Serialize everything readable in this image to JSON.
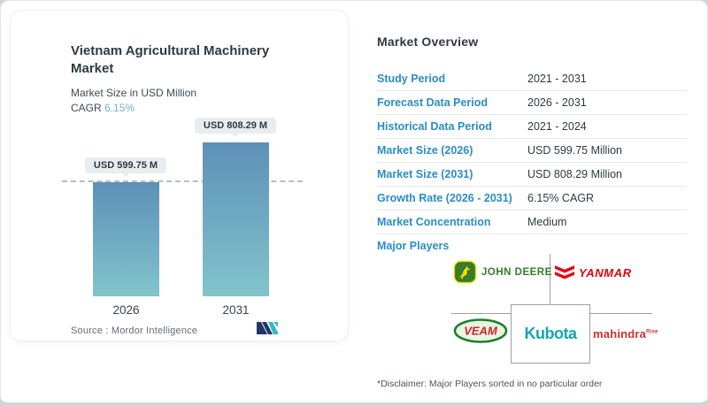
{
  "chart_card": {
    "title": "Vietnam Agricultural Machinery Market",
    "subtitle": "Market Size in USD Million",
    "cagr_label": "CAGR",
    "cagr_value": "6.15%",
    "source_label": "Source :",
    "source_value": "Mordor Intelligence"
  },
  "chart_data": {
    "type": "bar",
    "categories": [
      "2026",
      "2031"
    ],
    "values": [
      599.75,
      808.29
    ],
    "bar_labels": [
      "USD 599.75 M",
      "USD 808.29 M"
    ],
    "title": "Vietnam Agricultural Machinery Market",
    "ylabel": "Market Size in USD Million",
    "ylim": [
      0,
      808.29
    ],
    "grid": false,
    "reference_line_at": 599.75,
    "bar_gradient_top": "#5d90b8",
    "bar_gradient_bottom": "#82c4cb"
  },
  "overview": {
    "heading": "Market Overview",
    "rows": [
      {
        "label": "Study Period",
        "value": "2021 - 2031"
      },
      {
        "label": "Forecast Data Period",
        "value": "2026 - 2031"
      },
      {
        "label": "Historical Data Period",
        "value": "2021 - 2024"
      },
      {
        "label": "Market Size (2026)",
        "value": "USD 599.75 Million"
      },
      {
        "label": "Market Size (2031)",
        "value": "USD 808.29 Million"
      },
      {
        "label": "Growth Rate (2026 - 2031)",
        "value": "6.15% CAGR"
      },
      {
        "label": "Market Concentration",
        "value": "Medium"
      }
    ],
    "major_players_label": "Major Players",
    "players_logos": {
      "john_deere": "JOHN DEERE",
      "yanmar": "YANMAR",
      "kubota": "Kubota",
      "veam": "VEAM",
      "mahindra": "mahindra",
      "mahindra_sup": "Rise"
    },
    "disclaimer": "*Disclaimer: Major Players sorted in no particular order"
  },
  "colors": {
    "label_blue": "#2b8dc5",
    "cagr_blue": "#76aecb",
    "john_deere_green": "#367C2B",
    "john_deere_yellow": "#FFDE00",
    "yanmar_red": "#E60012",
    "kubota_teal": "#14a8ac",
    "mahindra_red": "#D62E2E",
    "veam_green": "#1C7F2C",
    "veam_red": "#D42127",
    "mordor_navy": "#23356b",
    "mordor_teal": "#38b6c9"
  }
}
